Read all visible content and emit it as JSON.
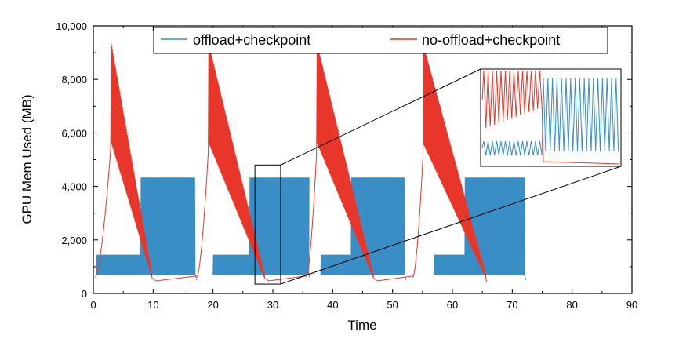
{
  "chart_data": {
    "type": "line",
    "xlabel": "Time",
    "ylabel": "GPU Mem Used (MB)",
    "xlim": [
      0,
      90
    ],
    "ylim": [
      0,
      10000
    ],
    "x_ticks": [
      0,
      10,
      20,
      30,
      40,
      50,
      60,
      70,
      80,
      90
    ],
    "x_tick_labels": [
      "0",
      "10",
      "20",
      "30",
      "40",
      "50",
      "60",
      "70",
      "80",
      "90"
    ],
    "y_ticks": [
      0,
      2000,
      4000,
      6000,
      8000,
      10000
    ],
    "y_tick_labels": [
      "0",
      "2,000",
      "4,000",
      "6,000",
      "8,000",
      "10,000"
    ],
    "grid": false,
    "legend_position": "top",
    "inset": true,
    "zoom_region": {
      "x": [
        27,
        31.3
      ],
      "y": [
        350,
        4800
      ]
    },
    "series": [
      {
        "name": "offload+checkpoint",
        "color": "#3a8ec6",
        "epochs": [
          {
            "start": 0.5,
            "switch": 7.8,
            "end": 17.0,
            "low_a": 700,
            "high_a": 1450,
            "low_b": 700,
            "high_b": 4330
          },
          {
            "start": 20.0,
            "switch": 26.0,
            "end": 36.0,
            "low_a": 700,
            "high_a": 1450,
            "low_b": 700,
            "high_b": 4330
          },
          {
            "start": 38.0,
            "switch": 43.0,
            "end": 52.0,
            "low_a": 700,
            "high_a": 1450,
            "low_b": 700,
            "high_b": 4330
          },
          {
            "start": 57.0,
            "switch": 62.0,
            "end": 72.0,
            "low_a": 700,
            "high_a": 1450,
            "low_b": 700,
            "high_b": 4330
          }
        ]
      },
      {
        "name": "no-offload+checkpoint",
        "color": "#e8372a",
        "cycles": [
          {
            "start": 0.3,
            "peak_x": 3.0,
            "peak_y": 9350,
            "end": 9.8,
            "base": 600
          },
          {
            "start": 17.3,
            "peak_x": 19.3,
            "peak_y": 9320,
            "end": 28.6,
            "base": 600
          },
          {
            "start": 35.6,
            "peak_x": 37.4,
            "peak_y": 9320,
            "end": 46.8,
            "base": 600
          },
          {
            "start": 53.4,
            "peak_x": 55.2,
            "peak_y": 9250,
            "end": 65.6,
            "base": 600
          }
        ]
      }
    ]
  }
}
